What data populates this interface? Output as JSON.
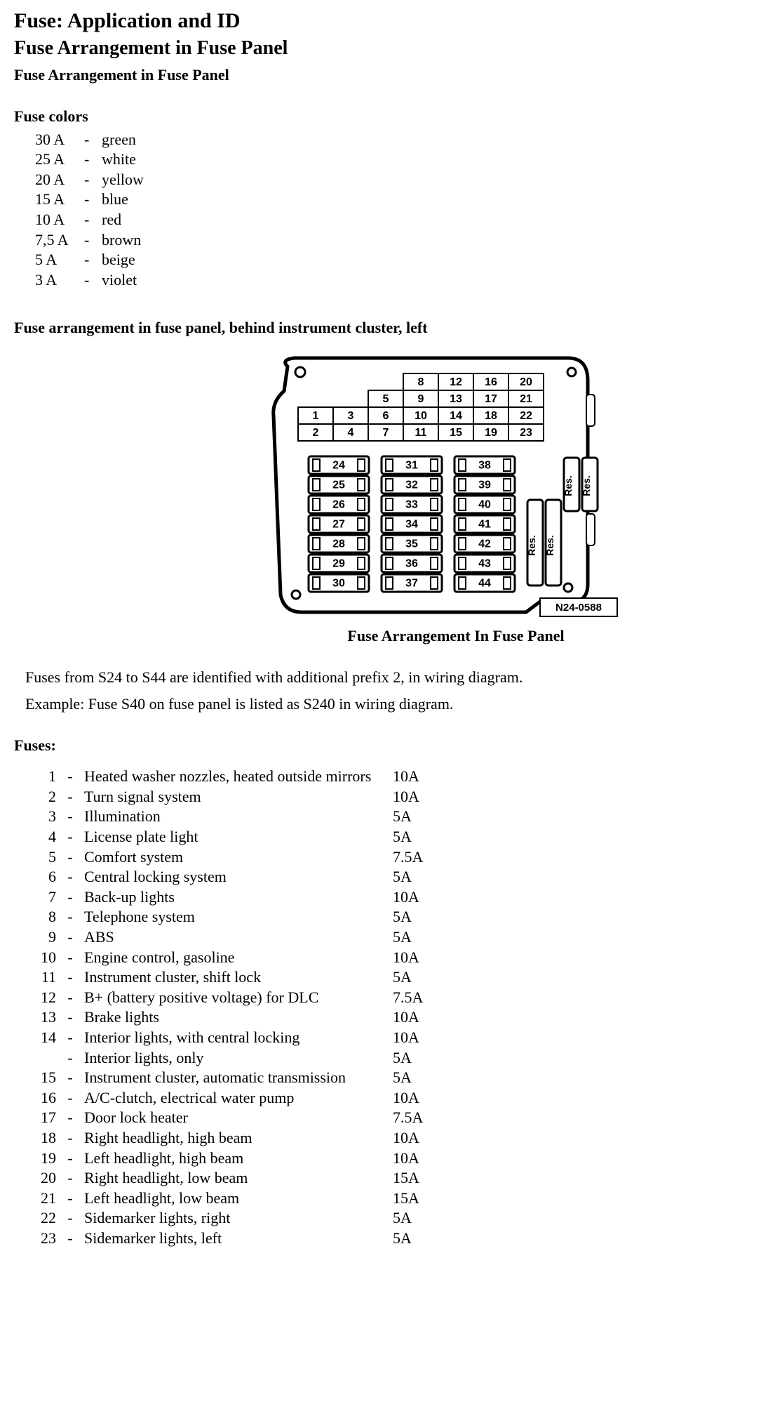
{
  "title1": "Fuse: Application and ID",
  "title2": "Fuse Arrangement in Fuse Panel",
  "subtitle": "Fuse Arrangement in Fuse Panel",
  "colors_heading": "Fuse colors",
  "colors": [
    {
      "amp": "30 A",
      "name": "green"
    },
    {
      "amp": "25 A",
      "name": "white"
    },
    {
      "amp": "20 A",
      "name": "yellow"
    },
    {
      "amp": "15 A",
      "name": "blue"
    },
    {
      "amp": "10 A",
      "name": "red"
    },
    {
      "amp": "7,5 A",
      "name": "brown"
    },
    {
      "amp": "5 A",
      "name": "beige"
    },
    {
      "amp": "3 A",
      "name": "violet"
    }
  ],
  "arrangement_heading": "Fuse arrangement in fuse panel, behind instrument cluster, left",
  "diagram": {
    "panel_code": "N24-0588",
    "top_grid": {
      "cells": [
        "1",
        "2",
        "3",
        "4",
        "5",
        "6",
        "7",
        "8",
        "9",
        "10",
        "11",
        "12",
        "13",
        "14",
        "15",
        "16",
        "17",
        "18",
        "19",
        "20",
        "21",
        "22",
        "23"
      ]
    },
    "fuse_columns": [
      [
        "24",
        "25",
        "26",
        "27",
        "28",
        "29",
        "30"
      ],
      [
        "31",
        "32",
        "33",
        "34",
        "35",
        "36",
        "37"
      ],
      [
        "38",
        "39",
        "40",
        "41",
        "42",
        "43",
        "44"
      ]
    ],
    "res_labels": [
      "Res.",
      "Res.",
      "Res.",
      "Res."
    ]
  },
  "diagram_caption": "Fuse Arrangement In Fuse Panel",
  "note1": "Fuses from S24 to S44 are identified with additional prefix 2, in wiring diagram.",
  "note2": "Example: Fuse S40 on fuse panel is listed as S240 in wiring diagram.",
  "fuses_heading": "Fuses:",
  "fuses": [
    {
      "n": "1",
      "d": "Heated washer nozzles, heated outside mirrors",
      "r": "10A"
    },
    {
      "n": "2",
      "d": "Turn signal system",
      "r": "10A"
    },
    {
      "n": "3",
      "d": "Illumination",
      "r": "5A"
    },
    {
      "n": "4",
      "d": "License plate light",
      "r": "5A"
    },
    {
      "n": "5",
      "d": "Comfort system",
      "r": "7.5A"
    },
    {
      "n": "6",
      "d": "Central locking system",
      "r": "5A"
    },
    {
      "n": "7",
      "d": "Back-up lights",
      "r": "10A"
    },
    {
      "n": "8",
      "d": "Telephone system",
      "r": "5A"
    },
    {
      "n": "9",
      "d": "ABS",
      "r": "5A"
    },
    {
      "n": "10",
      "d": "Engine control, gasoline",
      "r": "10A"
    },
    {
      "n": "11",
      "d": "Instrument cluster, shift lock",
      "r": "5A"
    },
    {
      "n": "12",
      "d": "B+ (battery positive voltage) for DLC",
      "r": "7.5A"
    },
    {
      "n": "13",
      "d": "Brake lights",
      "r": "10A"
    },
    {
      "n": "14",
      "d": "Interior lights, with central locking",
      "r": "10A"
    },
    {
      "n": "",
      "d": "Interior lights, only",
      "r": "5A"
    },
    {
      "n": "15",
      "d": "Instrument cluster, automatic transmission",
      "r": "5A"
    },
    {
      "n": "16",
      "d": "A/C-clutch, electrical water pump",
      "r": "10A"
    },
    {
      "n": "17",
      "d": "Door lock heater",
      "r": "7.5A"
    },
    {
      "n": "18",
      "d": "Right headlight, high beam",
      "r": "10A"
    },
    {
      "n": "19",
      "d": "Left headlight, high beam",
      "r": "10A"
    },
    {
      "n": "20",
      "d": "Right headlight, low beam",
      "r": "15A"
    },
    {
      "n": "21",
      "d": "Left headlight, low beam",
      "r": "15A"
    },
    {
      "n": "22",
      "d": "Sidemarker lights, right",
      "r": "5A"
    },
    {
      "n": "23",
      "d": "Sidemarker lights, left",
      "r": "5A"
    }
  ]
}
